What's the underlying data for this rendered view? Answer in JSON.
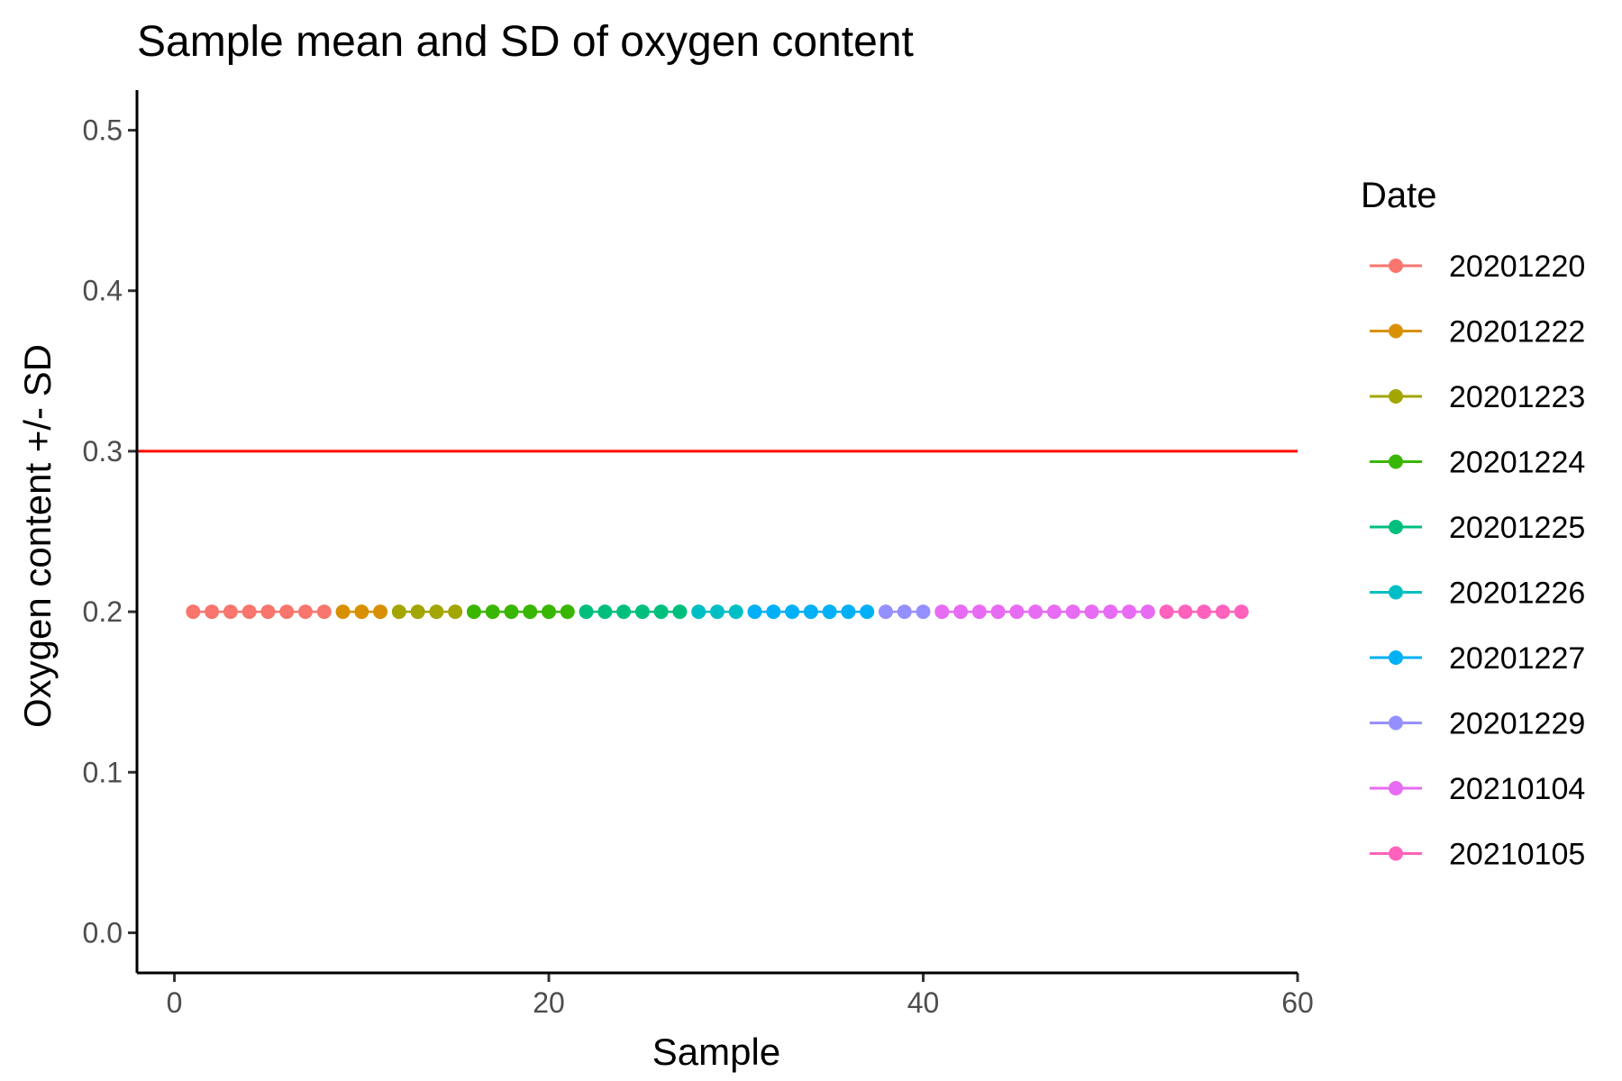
{
  "chart_data": {
    "type": "scatter",
    "title": "Sample mean and SD of oxygen content",
    "xlabel": "Sample",
    "ylabel": "Oxygen content +/- SD",
    "xlim": [
      -2,
      60
    ],
    "ylim": [
      -0.025,
      0.525
    ],
    "x_ticks": [
      0,
      20,
      40,
      60
    ],
    "y_ticks": [
      0.0,
      0.1,
      0.2,
      0.3,
      0.4,
      0.5
    ],
    "x_tick_labels": [
      "0",
      "20",
      "40",
      "60"
    ],
    "y_tick_labels": [
      "0.0",
      "0.1",
      "0.2",
      "0.3",
      "0.4",
      "0.5"
    ],
    "grid": false,
    "legend": {
      "title": "Date",
      "placement": "right"
    },
    "reference_line": {
      "y": 0.3,
      "color": "#ff0000"
    },
    "series": [
      {
        "name": "20201220",
        "color": "#f8766d",
        "x": [
          1,
          2,
          3,
          4,
          5,
          6,
          7,
          8
        ],
        "y": [
          0.2,
          0.2,
          0.2,
          0.2,
          0.2,
          0.2,
          0.2,
          0.2
        ]
      },
      {
        "name": "20201222",
        "color": "#d89000",
        "x": [
          9,
          10,
          11
        ],
        "y": [
          0.2,
          0.2,
          0.2
        ]
      },
      {
        "name": "20201223",
        "color": "#a3a500",
        "x": [
          12,
          13,
          14,
          15
        ],
        "y": [
          0.2,
          0.2,
          0.2,
          0.2
        ]
      },
      {
        "name": "20201224",
        "color": "#39b600",
        "x": [
          16,
          17,
          18,
          19,
          20,
          21
        ],
        "y": [
          0.2,
          0.2,
          0.2,
          0.2,
          0.2,
          0.2
        ]
      },
      {
        "name": "20201225",
        "color": "#00bf7d",
        "x": [
          22,
          23,
          24,
          25,
          26,
          27
        ],
        "y": [
          0.2,
          0.2,
          0.2,
          0.2,
          0.2,
          0.2
        ]
      },
      {
        "name": "20201226",
        "color": "#00bfc4",
        "x": [
          28,
          29,
          30
        ],
        "y": [
          0.2,
          0.2,
          0.2
        ]
      },
      {
        "name": "20201227",
        "color": "#00b0f6",
        "x": [
          31,
          32,
          33,
          34,
          35,
          36,
          37
        ],
        "y": [
          0.2,
          0.2,
          0.2,
          0.2,
          0.2,
          0.2,
          0.2
        ]
      },
      {
        "name": "20201229",
        "color": "#9590ff",
        "x": [
          38,
          39,
          40
        ],
        "y": [
          0.2,
          0.2,
          0.2
        ]
      },
      {
        "name": "20210104",
        "color": "#e76bf3",
        "x": [
          41,
          42,
          43,
          44,
          45,
          46,
          47,
          48,
          49,
          50,
          51,
          52
        ],
        "y": [
          0.2,
          0.2,
          0.2,
          0.2,
          0.2,
          0.2,
          0.2,
          0.2,
          0.2,
          0.2,
          0.2,
          0.2
        ]
      },
      {
        "name": "20210105",
        "color": "#ff62bc",
        "x": [
          53,
          54,
          55,
          56,
          57
        ],
        "y": [
          0.2,
          0.2,
          0.2,
          0.2,
          0.2
        ]
      }
    ]
  }
}
